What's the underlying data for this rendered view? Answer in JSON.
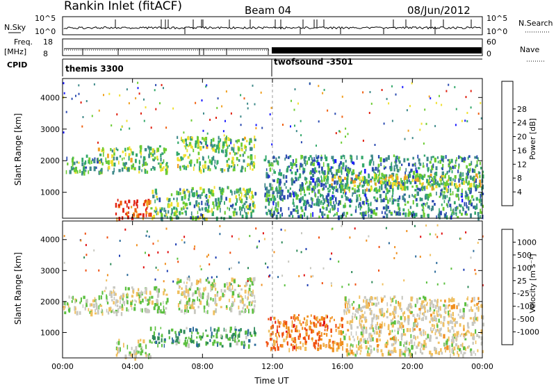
{
  "header": {
    "station": "Rankin Inlet (fitACF)",
    "beam": "Beam 04",
    "date": "08/Jun/2012"
  },
  "status_panels": {
    "nsky_label": "N.Sky",
    "nsky_ticks": [
      "10^5",
      "10^0"
    ],
    "nsearch_label": "N.Search",
    "nsearch_ticks": [
      "10^5",
      "10^0"
    ],
    "freq_label_1": "Freq.",
    "freq_label_2": "[MHz]",
    "freq_ticks": [
      "18",
      "8"
    ],
    "nave_label": "Nave",
    "nave_ticks": [
      "60",
      "0"
    ],
    "cpid_label": "CPID",
    "cpid_segments": [
      {
        "name": "themis 3300",
        "start_hour": 0
      },
      {
        "name": "twofsound -3501",
        "start_hour": 12
      }
    ]
  },
  "chart_data": [
    {
      "type": "heatmap",
      "panel": "power",
      "ylabel": "Slant Range [km]",
      "yticks": [
        1000,
        2000,
        3000,
        4000
      ],
      "ylim": [
        180,
        4600
      ],
      "xlim": [
        0,
        24
      ],
      "colorbar_label": "Power [dB]",
      "colorbar_ticks": [
        "4",
        "8",
        "12",
        "16",
        "20",
        "24",
        "28"
      ],
      "colorbar_colors": [
        "#1a1aff",
        "#2a4ab0",
        "#3f8a8a",
        "#33a86a",
        "#6ccc33",
        "#f0e030",
        "#f0a020",
        "#f06010",
        "#e02010"
      ],
      "echo_regions": [
        {
          "x": [
            0,
            2.2
          ],
          "y": [
            1650,
            2200
          ],
          "level": 0.35
        },
        {
          "x": [
            2.0,
            6.0
          ],
          "y": [
            1650,
            2500
          ],
          "level": 0.45
        },
        {
          "x": [
            6.5,
            11.0
          ],
          "y": [
            1700,
            2800
          ],
          "level": 0.45
        },
        {
          "x": [
            3.0,
            5.0
          ],
          "y": [
            200,
            800
          ],
          "level": 0.95
        },
        {
          "x": [
            5.0,
            11.0
          ],
          "y": [
            200,
            1200
          ],
          "level": 0.4
        },
        {
          "x": [
            11.5,
            24
          ],
          "y": [
            250,
            2200
          ],
          "level": 0.3
        },
        {
          "x": [
            15.0,
            24
          ],
          "y": [
            1100,
            1600
          ],
          "level": 0.55
        }
      ]
    },
    {
      "type": "heatmap",
      "panel": "velocity",
      "ylabel": "Slant Range [km]",
      "yticks": [
        1000,
        2000,
        3000,
        4000
      ],
      "ylim": [
        180,
        4600
      ],
      "xlim": [
        0,
        24
      ],
      "xticks": [
        "00:00",
        "04:00",
        "08:00",
        "12:00",
        "16:00",
        "20:00",
        "00:00"
      ],
      "xlabel": "Time UT",
      "colorbar_label": "Velocity [m s⁻¹]",
      "colorbar_ticks": [
        "1000",
        "500",
        "100",
        "25",
        "-25",
        "-100",
        "-500",
        "-1000"
      ],
      "colorbar_colors": [
        "#1a3ab0",
        "#2a6a9a",
        "#2f8a5a",
        "#5cc040",
        "#c8c8c0",
        "#f0c060",
        "#f09020",
        "#f05010",
        "#e01010"
      ],
      "echo_regions": [
        {
          "x": [
            0,
            2.2
          ],
          "y": [
            1650,
            2200
          ],
          "level": 0.5
        },
        {
          "x": [
            2.0,
            6.0
          ],
          "y": [
            1650,
            2500
          ],
          "level": 0.5
        },
        {
          "x": [
            6.5,
            11.0
          ],
          "y": [
            1700,
            2800
          ],
          "level": 0.5
        },
        {
          "x": [
            3.0,
            5.0
          ],
          "y": [
            200,
            800
          ],
          "level": 0.5
        },
        {
          "x": [
            5.0,
            11.0
          ],
          "y": [
            600,
            1200
          ],
          "level": 0.3
        },
        {
          "x": [
            11.5,
            16.0
          ],
          "y": [
            500,
            1600
          ],
          "level": 0.8
        },
        {
          "x": [
            16.0,
            24
          ],
          "y": [
            300,
            2200
          ],
          "level": 0.55
        }
      ]
    }
  ]
}
